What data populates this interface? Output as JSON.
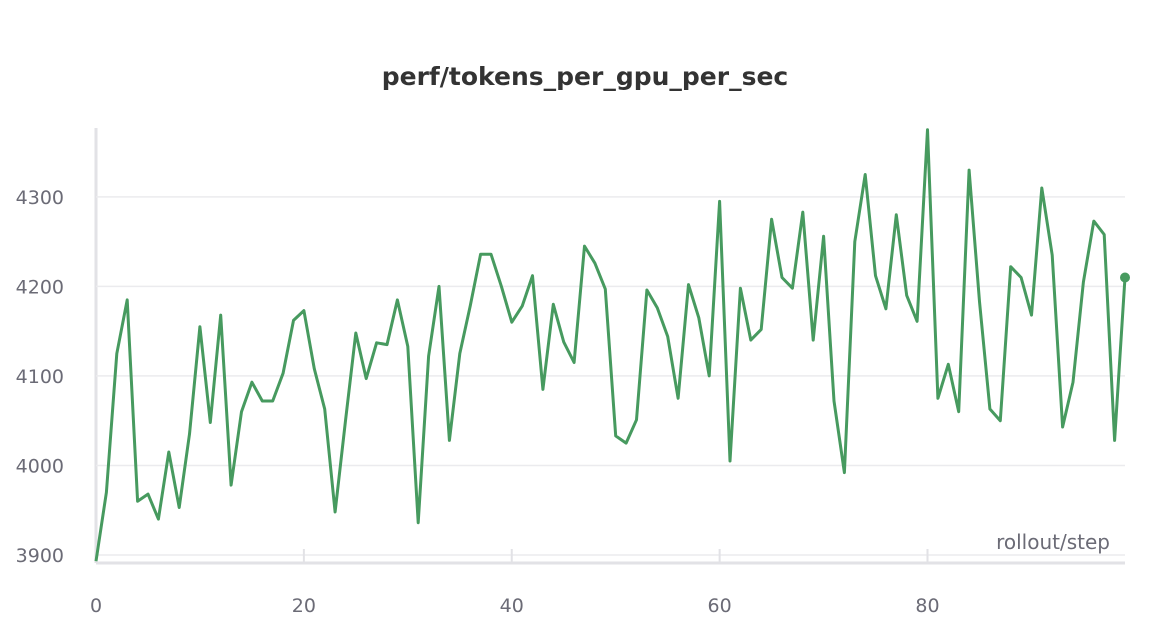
{
  "chart_data": {
    "type": "line",
    "title": "perf/tokens_per_gpu_per_sec",
    "x_label": "rollout/step",
    "x": [
      0,
      1,
      2,
      3,
      4,
      5,
      6,
      7,
      8,
      9,
      10,
      11,
      12,
      13,
      14,
      15,
      16,
      17,
      18,
      19,
      20,
      21,
      22,
      23,
      24,
      25,
      26,
      27,
      28,
      29,
      30,
      31,
      32,
      33,
      34,
      35,
      36,
      37,
      38,
      39,
      40,
      41,
      42,
      43,
      44,
      45,
      46,
      47,
      48,
      49,
      50,
      51,
      52,
      53,
      54,
      55,
      56,
      57,
      58,
      59,
      60,
      61,
      62,
      63,
      64,
      65,
      66,
      67,
      68,
      69,
      70,
      71,
      72,
      73,
      74,
      75,
      76,
      77,
      78,
      79,
      80,
      81,
      82,
      83,
      84,
      85,
      86,
      87,
      88,
      89,
      90,
      91,
      92,
      93,
      94,
      95,
      96,
      97,
      98,
      99
    ],
    "series": [
      {
        "name": "tokens_per_gpu_per_sec",
        "color": "#479a5f",
        "values": [
          3893,
          3970,
          4125,
          4185,
          3960,
          3968,
          3940,
          4015,
          3953,
          4035,
          4155,
          4048,
          4168,
          3978,
          4060,
          4093,
          4072,
          4072,
          4103,
          4162,
          4173,
          4108,
          4063,
          3948,
          4050,
          4148,
          4097,
          4137,
          4135,
          4185,
          4133,
          3936,
          4122,
          4200,
          4028,
          4125,
          4178,
          4236,
          4236,
          4200,
          4160,
          4178,
          4212,
          4085,
          4180,
          4138,
          4115,
          4245,
          4226,
          4197,
          4033,
          4025,
          4051,
          4196,
          4176,
          4144,
          4075,
          4202,
          4165,
          4100,
          4295,
          4005,
          4198,
          4140,
          4152,
          4275,
          4210,
          4198,
          4283,
          4140,
          4256,
          4072,
          3992,
          4250,
          4325,
          4212,
          4175,
          4280,
          4190,
          4161,
          4375,
          4075,
          4113,
          4060,
          4330,
          4183,
          4063,
          4050,
          4222,
          4210,
          4168,
          4310,
          4235,
          4043,
          4093,
          4205,
          4273,
          4258,
          4028,
          4210
        ]
      }
    ],
    "xlim": [
      0,
      99
    ],
    "ylim": [
      3891,
      4377
    ],
    "xticks": [
      0,
      20,
      40,
      60,
      80
    ],
    "yticks": [
      3900,
      4000,
      4100,
      4200,
      4300
    ],
    "grid": true
  }
}
